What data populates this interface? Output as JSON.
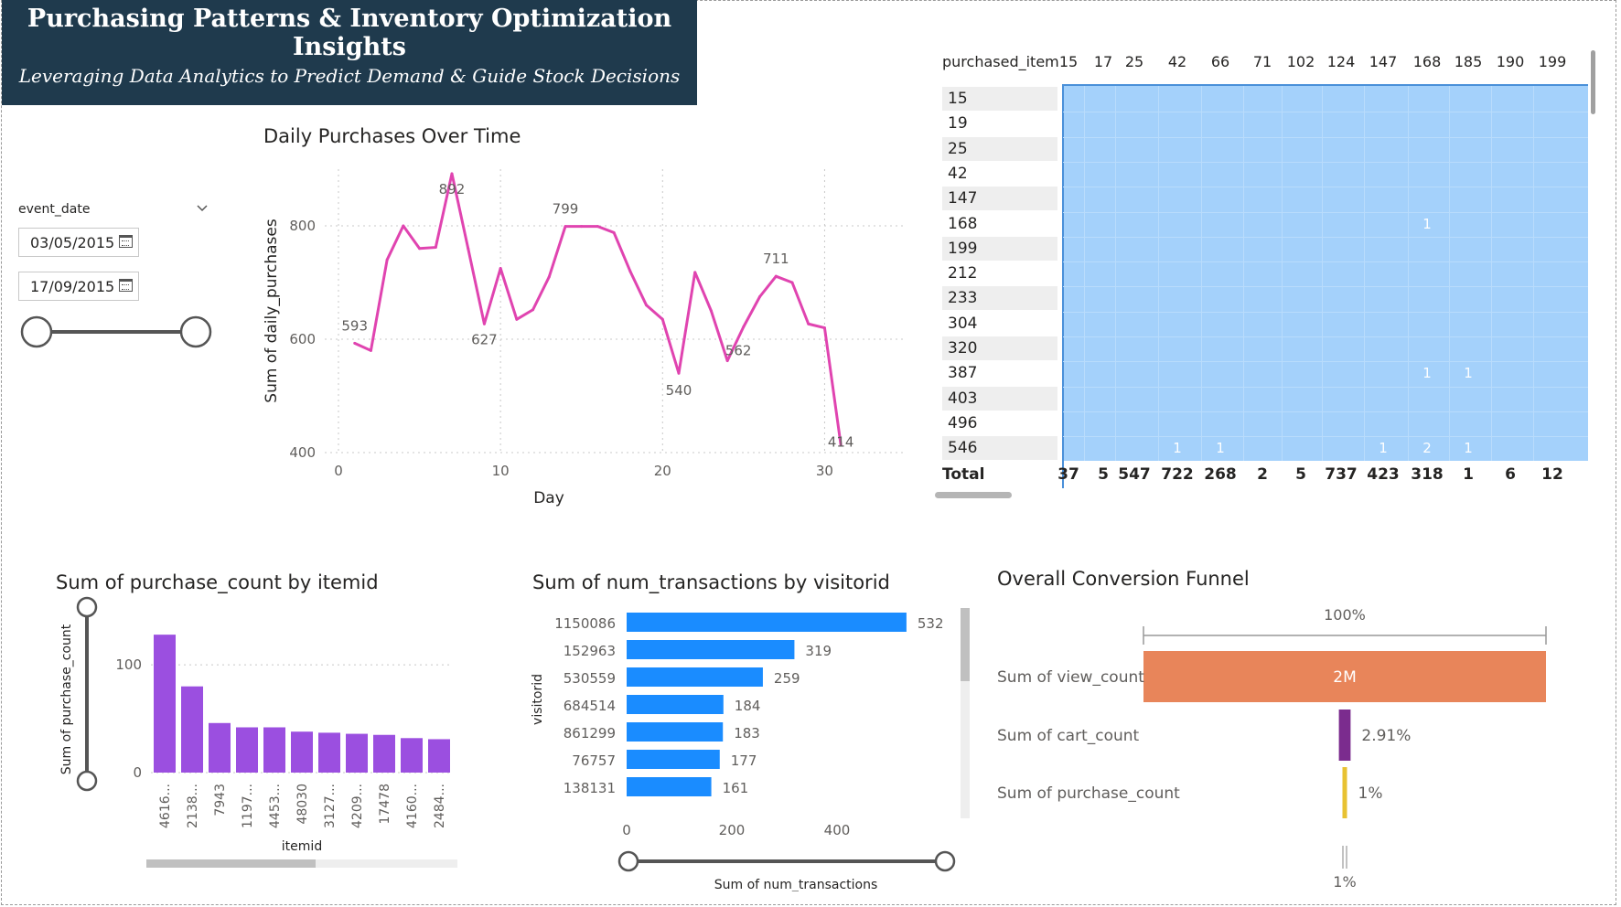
{
  "header": {
    "title": "Purchasing Patterns & Inventory Optimization Insights",
    "subtitle": "Leveraging Data Analytics to Predict Demand & Guide Stock Decisions"
  },
  "slicer": {
    "label": "event_date",
    "start_date": "03/05/2015",
    "end_date": "17/09/2015",
    "icon": "calendar-icon",
    "dropdown_icon": "chevron-down-icon"
  },
  "line_chart": {
    "title": "Daily Purchases Over Time",
    "xlabel": "Day",
    "ylabel": "Sum of daily_purchases",
    "color": "#e044b0",
    "chart_data": {
      "type": "line",
      "x": [
        1,
        2,
        3,
        4,
        5,
        6,
        7,
        8,
        9,
        10,
        11,
        12,
        13,
        14,
        15,
        16,
        17,
        18,
        19,
        20,
        21,
        22,
        23,
        24,
        25,
        26,
        27,
        28,
        29,
        30,
        31
      ],
      "values": [
        593,
        580,
        740,
        800,
        760,
        762,
        892,
        760,
        627,
        725,
        635,
        652,
        710,
        799,
        799,
        799,
        788,
        720,
        660,
        635,
        540,
        718,
        650,
        562,
        622,
        675,
        711,
        700,
        627,
        620,
        414
      ],
      "xticks": [
        0,
        10,
        20,
        30
      ],
      "yticks": [
        400,
        600,
        800
      ],
      "xlim": [
        0,
        35
      ],
      "ylim": [
        400,
        900
      ],
      "data_labels": [
        {
          "x": 1,
          "text": "593"
        },
        {
          "x": 7,
          "text": "892"
        },
        {
          "x": 9,
          "text": "627"
        },
        {
          "x": 14,
          "text": "799"
        },
        {
          "x": 21,
          "text": "540"
        },
        {
          "x": 24,
          "text": "562"
        },
        {
          "x": 27,
          "text": "711"
        },
        {
          "x": 31,
          "text": "414"
        }
      ]
    }
  },
  "matrix": {
    "corner_label": "purchased_item",
    "columns": [
      "15",
      "17",
      "25",
      "42",
      "66",
      "71",
      "102",
      "124",
      "147",
      "168",
      "185",
      "190",
      "199"
    ],
    "rows": [
      "15",
      "19",
      "25",
      "42",
      "147",
      "168",
      "199",
      "212",
      "233",
      "304",
      "320",
      "387",
      "403",
      "496",
      "546"
    ],
    "cells": [
      {
        "row": "168",
        "col": "168",
        "value": "1"
      },
      {
        "row": "387",
        "col": "168",
        "value": "1"
      },
      {
        "row": "387",
        "col": "185",
        "value": "1"
      },
      {
        "row": "546",
        "col": "42",
        "value": "1"
      },
      {
        "row": "546",
        "col": "66",
        "value": "1"
      },
      {
        "row": "546",
        "col": "147",
        "value": "1"
      },
      {
        "row": "546",
        "col": "168",
        "value": "2"
      },
      {
        "row": "546",
        "col": "185",
        "value": "1"
      }
    ],
    "total_label": "Total",
    "totals": [
      "37",
      "5",
      "547",
      "722",
      "268",
      "2",
      "5",
      "737",
      "423",
      "318",
      "1",
      "6",
      "12"
    ],
    "cell_color": "#a4d1fb"
  },
  "bar_chart": {
    "title": "Sum of purchase_count by itemid",
    "xlabel": "itemid",
    "ylabel": "Sum of purchase_count",
    "color": "#9b4fe0",
    "chart_data": {
      "type": "bar",
      "categories": [
        "4616...",
        "2138...",
        "7943",
        "1197...",
        "4453...",
        "48030",
        "3127...",
        "4209...",
        "17478",
        "4160...",
        "2484..."
      ],
      "values": [
        128,
        80,
        46,
        42,
        42,
        38,
        37,
        36,
        35,
        32,
        31
      ],
      "yticks": [
        0,
        100
      ],
      "ylim": [
        0,
        140
      ]
    }
  },
  "hbar_chart": {
    "title": "Sum of num_transactions by visitorid",
    "xlabel": "Sum of num_transactions",
    "ylabel": "visitorid",
    "color": "#1a8cff",
    "chart_data": {
      "type": "bar",
      "orientation": "horizontal",
      "categories": [
        "1150086",
        "152963",
        "530559",
        "684514",
        "861299",
        "76757",
        "138131"
      ],
      "values": [
        532,
        319,
        259,
        184,
        183,
        177,
        161
      ],
      "xticks": [
        0,
        200,
        400
      ],
      "xlim": [
        0,
        600
      ]
    }
  },
  "funnel": {
    "title": "Overall Conversion Funnel",
    "top_percent": "100%",
    "bottom_percent": "1%",
    "chart_data": {
      "type": "funnel",
      "stages": [
        {
          "name": "Sum of view_count",
          "value_label": "2M",
          "percent": 100,
          "color": "#e8855a"
        },
        {
          "name": "Sum of cart_count",
          "value_label": "2.91%",
          "percent": 2.91,
          "color": "#7b2c8e"
        },
        {
          "name": "Sum of purchase_count",
          "value_label": "1%",
          "percent": 1,
          "color": "#e8c232"
        }
      ]
    }
  }
}
